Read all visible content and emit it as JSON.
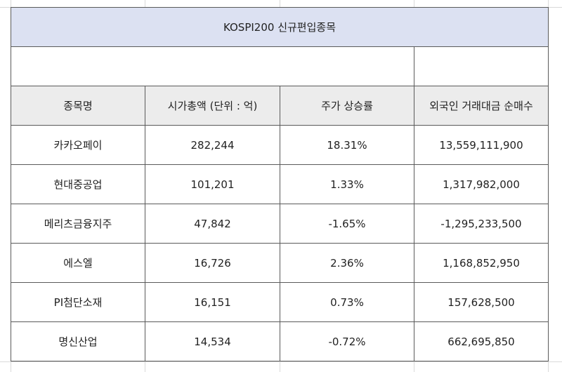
{
  "title": "KOSPI200 신규편입종목",
  "columns": [
    "종목명",
    "시가총액 (단위 : 억)",
    "주가 상승률",
    "외국인 거래대금 순매수"
  ],
  "rows": [
    {
      "name": "카카오페이",
      "market_cap": "282,244",
      "change": "18.31%",
      "foreign_net": "13,559,111,900"
    },
    {
      "name": "현대중공업",
      "market_cap": "101,201",
      "change": "1.33%",
      "foreign_net": "1,317,982,000"
    },
    {
      "name": "메리츠금융지주",
      "market_cap": "47,842",
      "change": "-1.65%",
      "foreign_net": "-1,295,233,500"
    },
    {
      "name": "에스엘",
      "market_cap": "16,726",
      "change": "2.36%",
      "foreign_net": "1,168,852,950"
    },
    {
      "name": "PI첨단소재",
      "market_cap": "16,151",
      "change": "0.73%",
      "foreign_net": "157,628,500"
    },
    {
      "name": "명신산업",
      "market_cap": "14,534",
      "change": "-0.72%",
      "foreign_net": "662,695,850"
    }
  ]
}
